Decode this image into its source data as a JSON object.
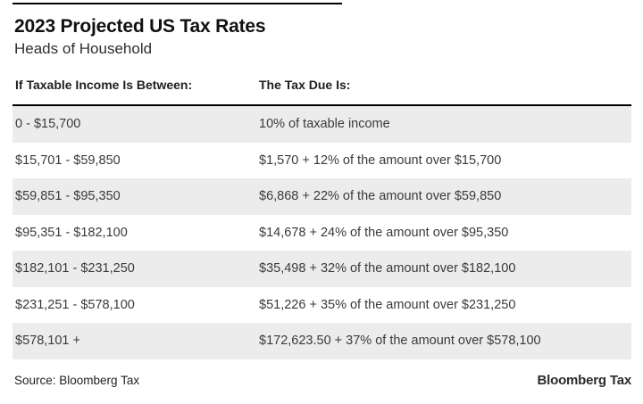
{
  "page": {
    "title": "2023 Projected US Tax Rates",
    "subtitle": "Heads of Household"
  },
  "table": {
    "columns": [
      "If Taxable Income Is Between:",
      "The Tax Due Is:"
    ],
    "rows": [
      [
        "0 - $15,700",
        "10% of taxable income"
      ],
      [
        "$15,701 - $59,850",
        "$1,570 + 12% of the amount over $15,700"
      ],
      [
        "$59,851 - $95,350",
        "$6,868 + 22% of the amount over $59,850"
      ],
      [
        "$95,351 - $182,100",
        "$14,678 + 24% of the amount over $95,350"
      ],
      [
        "$182,101 - $231,250",
        "$35,498 + 32% of the amount over $182,100"
      ],
      [
        "$231,251 - $578,100",
        "$51,226 + 35% of the amount over $231,250"
      ],
      [
        "$578,101 +",
        "$172,623.50 + 37% of the amount over $578,100"
      ]
    ]
  },
  "footer": {
    "source": "Source: Bloomberg Tax",
    "logo": "Bloomberg Tax"
  },
  "colors": {
    "row_alt": "#ececec",
    "header_rule": "#000000",
    "body_text": "#3a3a3a",
    "title_text": "#111111"
  },
  "chart_data": {
    "type": "table",
    "title": "2023 Projected US Tax Rates",
    "subtitle": "Heads of Household",
    "columns": [
      "If Taxable Income Is Between:",
      "The Tax Due Is:"
    ],
    "rows": [
      [
        "0 - $15,700",
        "10% of taxable income"
      ],
      [
        "$15,701 - $59,850",
        "$1,570 + 12% of the amount over $15,700"
      ],
      [
        "$59,851 - $95,350",
        "$6,868 + 22% of the amount over $59,850"
      ],
      [
        "$95,351 - $182,100",
        "$14,678 + 24% of the amount over $95,350"
      ],
      [
        "$182,101 - $231,250",
        "$35,498 + 32% of the amount over $182,100"
      ],
      [
        "$231,251 - $578,100",
        "$51,226 + 35% of the amount over $231,250"
      ],
      [
        "$578,101 +",
        "$172,623.50 + 37% of the amount over $578,100"
      ]
    ],
    "brackets": [
      {
        "lower": 0,
        "upper": 15700,
        "base_tax": 0,
        "rate_pct": 10,
        "over": 0
      },
      {
        "lower": 15701,
        "upper": 59850,
        "base_tax": 1570,
        "rate_pct": 12,
        "over": 15700
      },
      {
        "lower": 59851,
        "upper": 95350,
        "base_tax": 6868,
        "rate_pct": 22,
        "over": 59850
      },
      {
        "lower": 95351,
        "upper": 182100,
        "base_tax": 14678,
        "rate_pct": 24,
        "over": 95350
      },
      {
        "lower": 182101,
        "upper": 231250,
        "base_tax": 35498,
        "rate_pct": 32,
        "over": 182100
      },
      {
        "lower": 231251,
        "upper": 578100,
        "base_tax": 51226,
        "rate_pct": 35,
        "over": 231250
      },
      {
        "lower": 578101,
        "upper": null,
        "base_tax": 172623.5,
        "rate_pct": 37,
        "over": 578100
      }
    ],
    "source": "Source: Bloomberg Tax",
    "layout": {
      "striped": true,
      "stripe_color": "#ececec",
      "header_rule_color": "#000000"
    }
  }
}
